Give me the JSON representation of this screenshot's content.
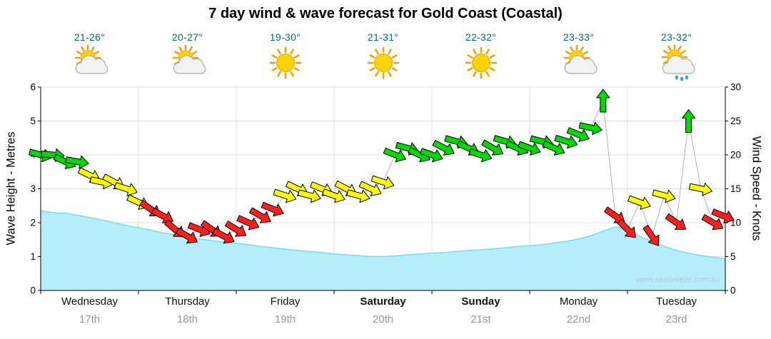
{
  "forecast": {
    "days": [
      {
        "name": "Wednesday",
        "date": "17th",
        "temp_range": "21-26°",
        "icon": "partly-cloudy",
        "bold": false
      },
      {
        "name": "Thursday",
        "date": "18th",
        "temp_range": "20-27°",
        "icon": "partly-cloudy",
        "bold": false
      },
      {
        "name": "Friday",
        "date": "19th",
        "temp_range": "19-30°",
        "icon": "sunny",
        "bold": false
      },
      {
        "name": "Saturday",
        "date": "20th",
        "temp_range": "21-31°",
        "icon": "sunny",
        "bold": true
      },
      {
        "name": "Sunday",
        "date": "21st",
        "temp_range": "22-32°",
        "icon": "sunny",
        "bold": true
      },
      {
        "name": "Monday",
        "date": "22nd",
        "temp_range": "23-33°",
        "icon": "partly-cloudy",
        "bold": false
      },
      {
        "name": "Tuesday",
        "date": "23rd",
        "temp_range": "23-32°",
        "icon": "showers",
        "bold": false
      }
    ]
  },
  "chart_data": {
    "type": "area",
    "title": "7 day wind & wave forecast for Gold Coast (Coastal)",
    "watermark": "www.seabreeze.com.au",
    "x_unit": "days",
    "x_range": [
      0,
      7
    ],
    "x_tick_labels": [
      "Wednesday",
      "Thursday",
      "Friday",
      "Saturday",
      "Sunday",
      "Monday",
      "Tuesday"
    ],
    "x_tick_sublabels": [
      "17th",
      "18th",
      "19th",
      "20th",
      "21st",
      "22nd",
      "23rd"
    ],
    "grid": true,
    "left_axis": {
      "label": "Wave Height - Metres",
      "range": [
        0,
        6
      ],
      "step": 1
    },
    "right_axis": {
      "label": "Wind Speed - Knots",
      "range": [
        0,
        30
      ],
      "step": 5
    },
    "colors": {
      "wave_fill": "#b5eef8",
      "wave_line": "#76dcef",
      "g": "#00d800",
      "y": "#ffff00",
      "r": "#ff1f1f",
      "connector": "#b0b0b0"
    },
    "wave_series": {
      "name": "Wave Height (metres)",
      "axis": "left",
      "points": [
        [
          0,
          2.35
        ],
        [
          0.125,
          2.3
        ],
        [
          0.25,
          2.28
        ],
        [
          0.375,
          2.22
        ],
        [
          0.5,
          2.15
        ],
        [
          0.625,
          2.08
        ],
        [
          0.75,
          2.0
        ],
        [
          0.875,
          1.92
        ],
        [
          1,
          1.85
        ],
        [
          1.125,
          1.78
        ],
        [
          1.25,
          1.7
        ],
        [
          1.375,
          1.64
        ],
        [
          1.5,
          1.58
        ],
        [
          1.625,
          1.52
        ],
        [
          1.75,
          1.47
        ],
        [
          1.875,
          1.43
        ],
        [
          2,
          1.4
        ],
        [
          2.125,
          1.35
        ],
        [
          2.25,
          1.3
        ],
        [
          2.375,
          1.26
        ],
        [
          2.5,
          1.22
        ],
        [
          2.625,
          1.18
        ],
        [
          2.75,
          1.15
        ],
        [
          2.875,
          1.12
        ],
        [
          3,
          1.08
        ],
        [
          3.125,
          1.05
        ],
        [
          3.25,
          1.03
        ],
        [
          3.375,
          1.0
        ],
        [
          3.5,
          1.0
        ],
        [
          3.625,
          1.02
        ],
        [
          3.75,
          1.05
        ],
        [
          3.875,
          1.08
        ],
        [
          4,
          1.1
        ],
        [
          4.125,
          1.12
        ],
        [
          4.25,
          1.15
        ],
        [
          4.375,
          1.18
        ],
        [
          4.5,
          1.2
        ],
        [
          4.625,
          1.23
        ],
        [
          4.75,
          1.26
        ],
        [
          4.875,
          1.3
        ],
        [
          5,
          1.32
        ],
        [
          5.125,
          1.35
        ],
        [
          5.25,
          1.4
        ],
        [
          5.375,
          1.45
        ],
        [
          5.5,
          1.52
        ],
        [
          5.625,
          1.62
        ],
        [
          5.75,
          1.75
        ],
        [
          5.875,
          1.88
        ],
        [
          6,
          1.8
        ],
        [
          6.125,
          1.6
        ],
        [
          6.25,
          1.45
        ],
        [
          6.375,
          1.3
        ],
        [
          6.5,
          1.18
        ],
        [
          6.625,
          1.1
        ],
        [
          6.75,
          1.03
        ],
        [
          6.875,
          0.98
        ],
        [
          7,
          0.93
        ]
      ]
    },
    "wind_series": {
      "name": "Wind Speed (knots)",
      "axis": "right",
      "point_format": [
        "t_days",
        "knots",
        "direction_deg",
        "color"
      ],
      "points": [
        [
          0,
          20,
          15,
          "g"
        ],
        [
          0.125,
          20,
          5,
          "g"
        ],
        [
          0.25,
          19,
          25,
          "g"
        ],
        [
          0.375,
          19,
          10,
          "g"
        ],
        [
          0.5,
          17,
          25,
          "y"
        ],
        [
          0.625,
          16,
          12,
          "y"
        ],
        [
          0.75,
          16,
          28,
          "y"
        ],
        [
          0.875,
          15,
          18,
          "y"
        ],
        [
          1,
          13,
          25,
          "y"
        ],
        [
          1.125,
          12,
          35,
          "r"
        ],
        [
          1.25,
          11,
          28,
          "r"
        ],
        [
          1.375,
          9,
          40,
          "r"
        ],
        [
          1.5,
          8,
          30,
          "r"
        ],
        [
          1.625,
          9,
          22,
          "r"
        ],
        [
          1.75,
          9,
          35,
          "r"
        ],
        [
          1.875,
          8,
          28,
          "r"
        ],
        [
          2,
          9,
          32,
          "r"
        ],
        [
          2.125,
          10,
          24,
          "r"
        ],
        [
          2.25,
          11,
          30,
          "r"
        ],
        [
          2.375,
          12,
          22,
          "r"
        ],
        [
          2.5,
          14,
          18,
          "y"
        ],
        [
          2.625,
          15,
          25,
          "y"
        ],
        [
          2.75,
          14,
          15,
          "y"
        ],
        [
          2.875,
          15,
          22,
          "y"
        ],
        [
          3,
          14,
          20,
          "y"
        ],
        [
          3.125,
          15,
          28,
          "y"
        ],
        [
          3.25,
          14,
          15,
          "y"
        ],
        [
          3.375,
          15,
          25,
          "y"
        ],
        [
          3.5,
          16,
          18,
          "y"
        ],
        [
          3.625,
          20,
          22,
          "g"
        ],
        [
          3.75,
          21,
          15,
          "g"
        ],
        [
          3.875,
          20,
          25,
          "g"
        ],
        [
          4,
          20,
          20,
          "g"
        ],
        [
          4.125,
          21,
          28,
          "g"
        ],
        [
          4.25,
          22,
          15,
          "g"
        ],
        [
          4.375,
          21,
          24,
          "g"
        ],
        [
          4.5,
          20,
          18,
          "g"
        ],
        [
          4.625,
          21,
          30,
          "g"
        ],
        [
          4.75,
          22,
          16,
          "g"
        ],
        [
          4.875,
          21,
          24,
          "g"
        ],
        [
          5,
          21,
          20,
          "g"
        ],
        [
          5.125,
          22,
          14,
          "g"
        ],
        [
          5.25,
          21,
          24,
          "g"
        ],
        [
          5.375,
          22,
          17,
          "g"
        ],
        [
          5.5,
          23,
          22,
          "g"
        ],
        [
          5.625,
          24,
          12,
          "g"
        ],
        [
          5.75,
          28,
          -90,
          "g"
        ],
        [
          5.875,
          11,
          35,
          "r"
        ],
        [
          6,
          9,
          45,
          "r"
        ],
        [
          6.125,
          13,
          20,
          "y"
        ],
        [
          6.25,
          8,
          55,
          "r"
        ],
        [
          6.375,
          14,
          15,
          "y"
        ],
        [
          6.5,
          10,
          35,
          "r"
        ],
        [
          6.625,
          25,
          -90,
          "g"
        ],
        [
          6.75,
          15,
          12,
          "y"
        ],
        [
          6.875,
          10,
          30,
          "r"
        ],
        [
          6.98,
          11,
          22,
          "r"
        ]
      ]
    }
  }
}
